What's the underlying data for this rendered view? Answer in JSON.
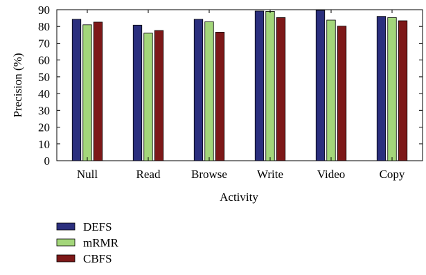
{
  "chart_data": {
    "type": "bar",
    "title": "",
    "xlabel": "Activity",
    "ylabel": "Precision (%)",
    "ylim": [
      0,
      90
    ],
    "yticks": [
      0,
      10,
      20,
      30,
      40,
      50,
      60,
      70,
      80,
      90
    ],
    "categories": [
      "Null",
      "Read",
      "Browse",
      "Write",
      "Video",
      "Copy"
    ],
    "series": [
      {
        "name": "DEFS",
        "color": "#2b2f7e",
        "values": [
          84.3,
          80.8,
          84.3,
          89.2,
          89.6,
          86.0
        ]
      },
      {
        "name": "mRMR",
        "color": "#a3d67a",
        "values": [
          81.0,
          76.0,
          82.8,
          89.0,
          83.8,
          85.3
        ]
      },
      {
        "name": "CBFS",
        "color": "#7d1818",
        "values": [
          82.6,
          77.6,
          76.6,
          85.3,
          80.2,
          83.4
        ]
      }
    ],
    "grid": false,
    "legend_position": "bottom-left"
  }
}
